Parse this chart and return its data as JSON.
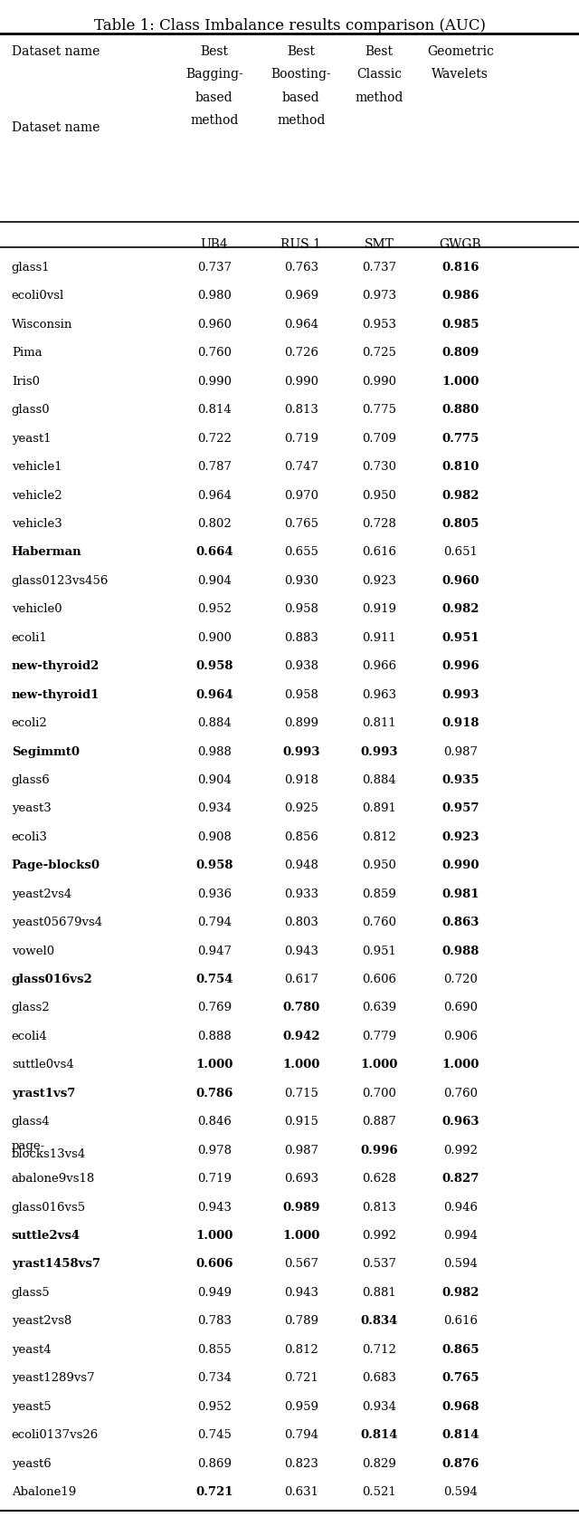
{
  "title": "Table 1: Class Imbalance results comparison (AUC)",
  "col_headers": [
    "Dataset name",
    "Best\nBagging-\nbased\nmethod\nUB4",
    "Best\nBoosting-\nbased\nmethod\nRUS 1",
    "Best\nClassic\nmethod\n\nSMT",
    "Geometric\nWavelets\n\n\nGWGB"
  ],
  "rows": [
    {
      "name": "glass1",
      "v1": "0.737",
      "v2": "0.763",
      "v3": "0.737",
      "v4": "0.816",
      "bold": [
        4
      ]
    },
    {
      "name": "ecoli0vsl",
      "v1": "0.980",
      "v2": "0.969",
      "v3": "0.973",
      "v4": "0.986",
      "bold": [
        4
      ]
    },
    {
      "name": "Wisconsin",
      "v1": "0.960",
      "v2": "0.964",
      "v3": "0.953",
      "v4": "0.985",
      "bold": [
        4
      ]
    },
    {
      "name": "Pima",
      "v1": "0.760",
      "v2": "0.726",
      "v3": "0.725",
      "v4": "0.809",
      "bold": [
        4
      ]
    },
    {
      "name": "Iris0",
      "v1": "0.990",
      "v2": "0.990",
      "v3": "0.990",
      "v4": "1.000",
      "bold": [
        4
      ]
    },
    {
      "name": "glass0",
      "v1": "0.814",
      "v2": "0.813",
      "v3": "0.775",
      "v4": "0.880",
      "bold": [
        4
      ]
    },
    {
      "name": "yeast1",
      "v1": "0.722",
      "v2": "0.719",
      "v3": "0.709",
      "v4": "0.775",
      "bold": [
        4
      ]
    },
    {
      "name": "vehicle1",
      "v1": "0.787",
      "v2": "0.747",
      "v3": "0.730",
      "v4": "0.810",
      "bold": [
        4
      ]
    },
    {
      "name": "vehicle2",
      "v1": "0.964",
      "v2": "0.970",
      "v3": "0.950",
      "v4": "0.982",
      "bold": [
        4
      ]
    },
    {
      "name": "vehicle3",
      "v1": "0.802",
      "v2": "0.765",
      "v3": "0.728",
      "v4": "0.805",
      "bold": [
        4
      ]
    },
    {
      "name": "Haberman",
      "v1": "0.664",
      "v2": "0.655",
      "v3": "0.616",
      "v4": "0.651",
      "bold": [
        1
      ]
    },
    {
      "name": "glass0123vs456",
      "v1": "0.904",
      "v2": "0.930",
      "v3": "0.923",
      "v4": "0.960",
      "bold": [
        4
      ]
    },
    {
      "name": "vehicle0",
      "v1": "0.952",
      "v2": "0.958",
      "v3": "0.919",
      "v4": "0.982",
      "bold": [
        4
      ]
    },
    {
      "name": "ecoli1",
      "v1": "0.900",
      "v2": "0.883",
      "v3": "0.911",
      "v4": "0.951",
      "bold": [
        4
      ]
    },
    {
      "name": "new-thyroid2",
      "v1": "0.958",
      "v2": "0.938",
      "v3": "0.966",
      "v4": "0.996",
      "bold": [
        1,
        4
      ]
    },
    {
      "name": "new-thyroid1",
      "v1": "0.964",
      "v2": "0.958",
      "v3": "0.963",
      "v4": "0.993",
      "bold": [
        1,
        4
      ]
    },
    {
      "name": "ecoli2",
      "v1": "0.884",
      "v2": "0.899",
      "v3": "0.811",
      "v4": "0.918",
      "bold": [
        4
      ]
    },
    {
      "name": "Segimmt0",
      "v1": "0.988",
      "v2": "0.993",
      "v3": "0.993",
      "v4": "0.987",
      "bold": [
        2,
        3
      ]
    },
    {
      "name": "glass6",
      "v1": "0.904",
      "v2": "0.918",
      "v3": "0.884",
      "v4": "0.935",
      "bold": [
        4
      ]
    },
    {
      "name": "yeast3",
      "v1": "0.934",
      "v2": "0.925",
      "v3": "0.891",
      "v4": "0.957",
      "bold": [
        4
      ]
    },
    {
      "name": "ecoli3",
      "v1": "0.908",
      "v2": "0.856",
      "v3": "0.812",
      "v4": "0.923",
      "bold": [
        4
      ]
    },
    {
      "name": "Page-blocks0",
      "v1": "0.958",
      "v2": "0.948",
      "v3": "0.950",
      "v4": "0.990",
      "bold": [
        1,
        4
      ]
    },
    {
      "name": "yeast2vs4",
      "v1": "0.936",
      "v2": "0.933",
      "v3": "0.859",
      "v4": "0.981",
      "bold": [
        4
      ]
    },
    {
      "name": "yeast05679vs4",
      "v1": "0.794",
      "v2": "0.803",
      "v3": "0.760",
      "v4": "0.863",
      "bold": [
        4
      ]
    },
    {
      "name": "vowel0",
      "v1": "0.947",
      "v2": "0.943",
      "v3": "0.951",
      "v4": "0.988",
      "bold": [
        4
      ]
    },
    {
      "name": "glass016vs2",
      "v1": "0.754",
      "v2": "0.617",
      "v3": "0.606",
      "v4": "0.720",
      "bold": [
        1
      ]
    },
    {
      "name": "glass2",
      "v1": "0.769",
      "v2": "0.780",
      "v3": "0.639",
      "v4": "0.690",
      "bold": [
        2
      ]
    },
    {
      "name": "ecoli4",
      "v1": "0.888",
      "v2": "0.942",
      "v3": "0.779",
      "v4": "0.906",
      "bold": [
        2
      ]
    },
    {
      "name": "suttle0vs4",
      "v1": "1.000",
      "v2": "1.000",
      "v3": "1.000",
      "v4": "1.000",
      "bold": [
        1,
        2,
        3,
        4
      ]
    },
    {
      "name": "yrast1vs7",
      "v1": "0.786",
      "v2": "0.715",
      "v3": "0.700",
      "v4": "0.760",
      "bold": [
        1
      ]
    },
    {
      "name": "glass4",
      "v1": "0.846",
      "v2": "0.915",
      "v3": "0.887",
      "v4": "0.963",
      "bold": [
        4
      ]
    },
    {
      "name": "page-\nblocks13vs4",
      "v1": "0.978",
      "v2": "0.987",
      "v3": "0.996",
      "v4": "0.992",
      "bold": [
        3
      ]
    },
    {
      "name": "abalone9vs18",
      "v1": "0.719",
      "v2": "0.693",
      "v3": "0.628",
      "v4": "0.827",
      "bold": [
        4
      ]
    },
    {
      "name": "glass016vs5",
      "v1": "0.943",
      "v2": "0.989",
      "v3": "0.813",
      "v4": "0.946",
      "bold": [
        2
      ]
    },
    {
      "name": "suttle2vs4",
      "v1": "1.000",
      "v2": "1.000",
      "v3": "0.992",
      "v4": "0.994",
      "bold": [
        1,
        2
      ]
    },
    {
      "name": "yrast1458vs7",
      "v1": "0.606",
      "v2": "0.567",
      "v3": "0.537",
      "v4": "0.594",
      "bold": [
        1
      ]
    },
    {
      "name": "glass5",
      "v1": "0.949",
      "v2": "0.943",
      "v3": "0.881",
      "v4": "0.982",
      "bold": [
        4
      ]
    },
    {
      "name": "yeast2vs8",
      "v1": "0.783",
      "v2": "0.789",
      "v3": "0.834",
      "v4": "0.616",
      "bold": [
        3
      ]
    },
    {
      "name": "yeast4",
      "v1": "0.855",
      "v2": "0.812",
      "v3": "0.712",
      "v4": "0.865",
      "bold": [
        4
      ]
    },
    {
      "name": "yeast1289vs7",
      "v1": "0.734",
      "v2": "0.721",
      "v3": "0.683",
      "v4": "0.765",
      "bold": [
        4
      ]
    },
    {
      "name": "yeast5",
      "v1": "0.952",
      "v2": "0.959",
      "v3": "0.934",
      "v4": "0.968",
      "bold": [
        4
      ]
    },
    {
      "name": "ecoli0137vs26",
      "v1": "0.745",
      "v2": "0.794",
      "v3": "0.814",
      "v4": "0.814",
      "bold": [
        3,
        4
      ]
    },
    {
      "name": "yeast6",
      "v1": "0.869",
      "v2": "0.823",
      "v3": "0.829",
      "v4": "0.876",
      "bold": [
        4
      ]
    },
    {
      "name": "Abalone19",
      "v1": "0.721",
      "v2": "0.631",
      "v3": "0.521",
      "v4": "0.594",
      "bold": [
        1
      ]
    }
  ]
}
